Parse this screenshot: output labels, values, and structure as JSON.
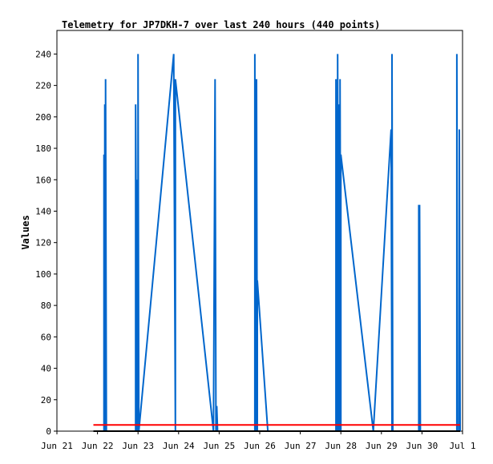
{
  "chart_data": {
    "type": "line",
    "title": "Telemetry for JP7DKH-7 over last 240 hours (440 points)",
    "ylabel": "Values",
    "xlabel": "",
    "ylim": [
      0,
      255
    ],
    "xlim_days": [
      0,
      10
    ],
    "y_ticks": [
      0,
      20,
      40,
      60,
      80,
      100,
      120,
      140,
      160,
      180,
      200,
      220,
      240
    ],
    "x_ticks": [
      {
        "day": 0,
        "label": "Jun 21"
      },
      {
        "day": 1,
        "label": "Jun 22"
      },
      {
        "day": 2,
        "label": "Jun 23"
      },
      {
        "day": 3,
        "label": "Jun 24"
      },
      {
        "day": 4,
        "label": "Jun 25"
      },
      {
        "day": 5,
        "label": "Jun 26"
      },
      {
        "day": 6,
        "label": "Jun 27"
      },
      {
        "day": 7,
        "label": "Jun 28"
      },
      {
        "day": 8,
        "label": "Jun 29"
      },
      {
        "day": 9,
        "label": "Jun 30"
      },
      {
        "day": 10,
        "label": "Jul 1"
      }
    ],
    "grid": false,
    "colors": {
      "series1": "#0066cc",
      "series2": "#ff0000",
      "series3": "#000000"
    },
    "series": [
      {
        "color": "#0066cc",
        "points": [
          [
            1.16,
            0
          ],
          [
            1.16,
            176
          ],
          [
            1.18,
            0
          ],
          [
            1.18,
            208
          ],
          [
            1.2,
            0
          ],
          [
            1.2,
            224
          ],
          [
            1.22,
            0
          ],
          [
            1.94,
            0
          ],
          [
            1.94,
            208
          ],
          [
            1.98,
            0
          ],
          [
            1.98,
            160
          ],
          [
            2.0,
            0
          ],
          [
            2.0,
            240
          ],
          [
            2.02,
            0
          ],
          [
            2.88,
            240
          ],
          [
            2.92,
            0
          ],
          [
            2.92,
            224
          ],
          [
            3.86,
            0
          ],
          [
            3.9,
            224
          ],
          [
            3.92,
            0
          ],
          [
            3.94,
            16
          ],
          [
            3.96,
            0
          ],
          [
            4.88,
            0
          ],
          [
            4.88,
            240
          ],
          [
            4.9,
            0
          ],
          [
            4.9,
            224
          ],
          [
            4.92,
            0
          ],
          [
            4.92,
            224
          ],
          [
            4.94,
            0
          ],
          [
            4.94,
            96
          ],
          [
            5.2,
            0
          ],
          [
            6.88,
            0
          ],
          [
            6.88,
            224
          ],
          [
            6.9,
            0
          ],
          [
            6.9,
            144
          ],
          [
            6.92,
            0
          ],
          [
            6.92,
            240
          ],
          [
            6.94,
            0
          ],
          [
            6.96,
            208
          ],
          [
            6.98,
            0
          ],
          [
            6.98,
            224
          ],
          [
            7.0,
            0
          ],
          [
            7.0,
            176
          ],
          [
            7.8,
            0
          ],
          [
            8.24,
            192
          ],
          [
            8.26,
            0
          ],
          [
            8.26,
            240
          ],
          [
            8.28,
            0
          ],
          [
            8.92,
            0
          ],
          [
            8.92,
            144
          ],
          [
            8.94,
            0
          ],
          [
            8.94,
            144
          ],
          [
            8.96,
            0
          ],
          [
            9.86,
            0
          ],
          [
            9.86,
            240
          ],
          [
            9.88,
            0
          ],
          [
            9.92,
            0
          ],
          [
            9.92,
            192
          ],
          [
            9.94,
            0
          ]
        ]
      },
      {
        "color": "#ff0000",
        "points": [
          [
            0.9,
            4
          ],
          [
            9.94,
            4
          ]
        ]
      },
      {
        "color": "#000000",
        "points": [
          [
            0.9,
            0
          ],
          [
            9.94,
            0
          ]
        ]
      }
    ]
  }
}
